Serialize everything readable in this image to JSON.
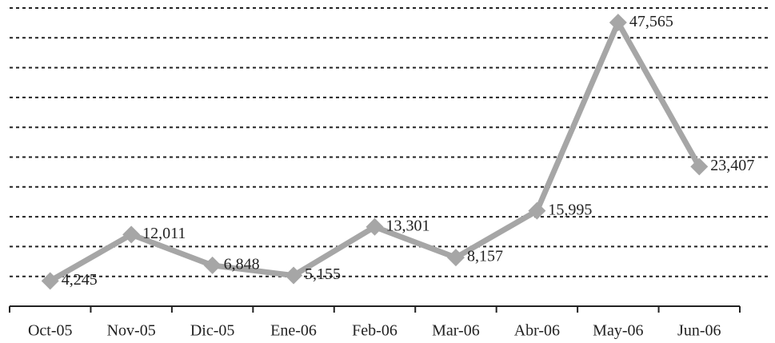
{
  "chart_data": {
    "type": "line",
    "categories": [
      "Oct-05",
      "Nov-05",
      "Dic-05",
      "Ene-06",
      "Feb-06",
      "Mar-06",
      "Abr-06",
      "May-06",
      "Jun-06"
    ],
    "series": [
      {
        "color": "#a6a6a6",
        "values": [
          4245,
          12011,
          6848,
          5155,
          13301,
          8157,
          15995,
          47565,
          23407
        ],
        "value_labels": [
          "4,245",
          "12,011",
          "6,848",
          "5,155",
          "13,301",
          "8,157",
          "15,995",
          "47,565",
          "23,407"
        ]
      }
    ],
    "ylim": [
      0,
      50000
    ],
    "yticks": [
      0,
      5000,
      10000,
      15000,
      20000,
      25000,
      30000,
      35000,
      40000,
      45000,
      50000
    ],
    "grid": true
  }
}
